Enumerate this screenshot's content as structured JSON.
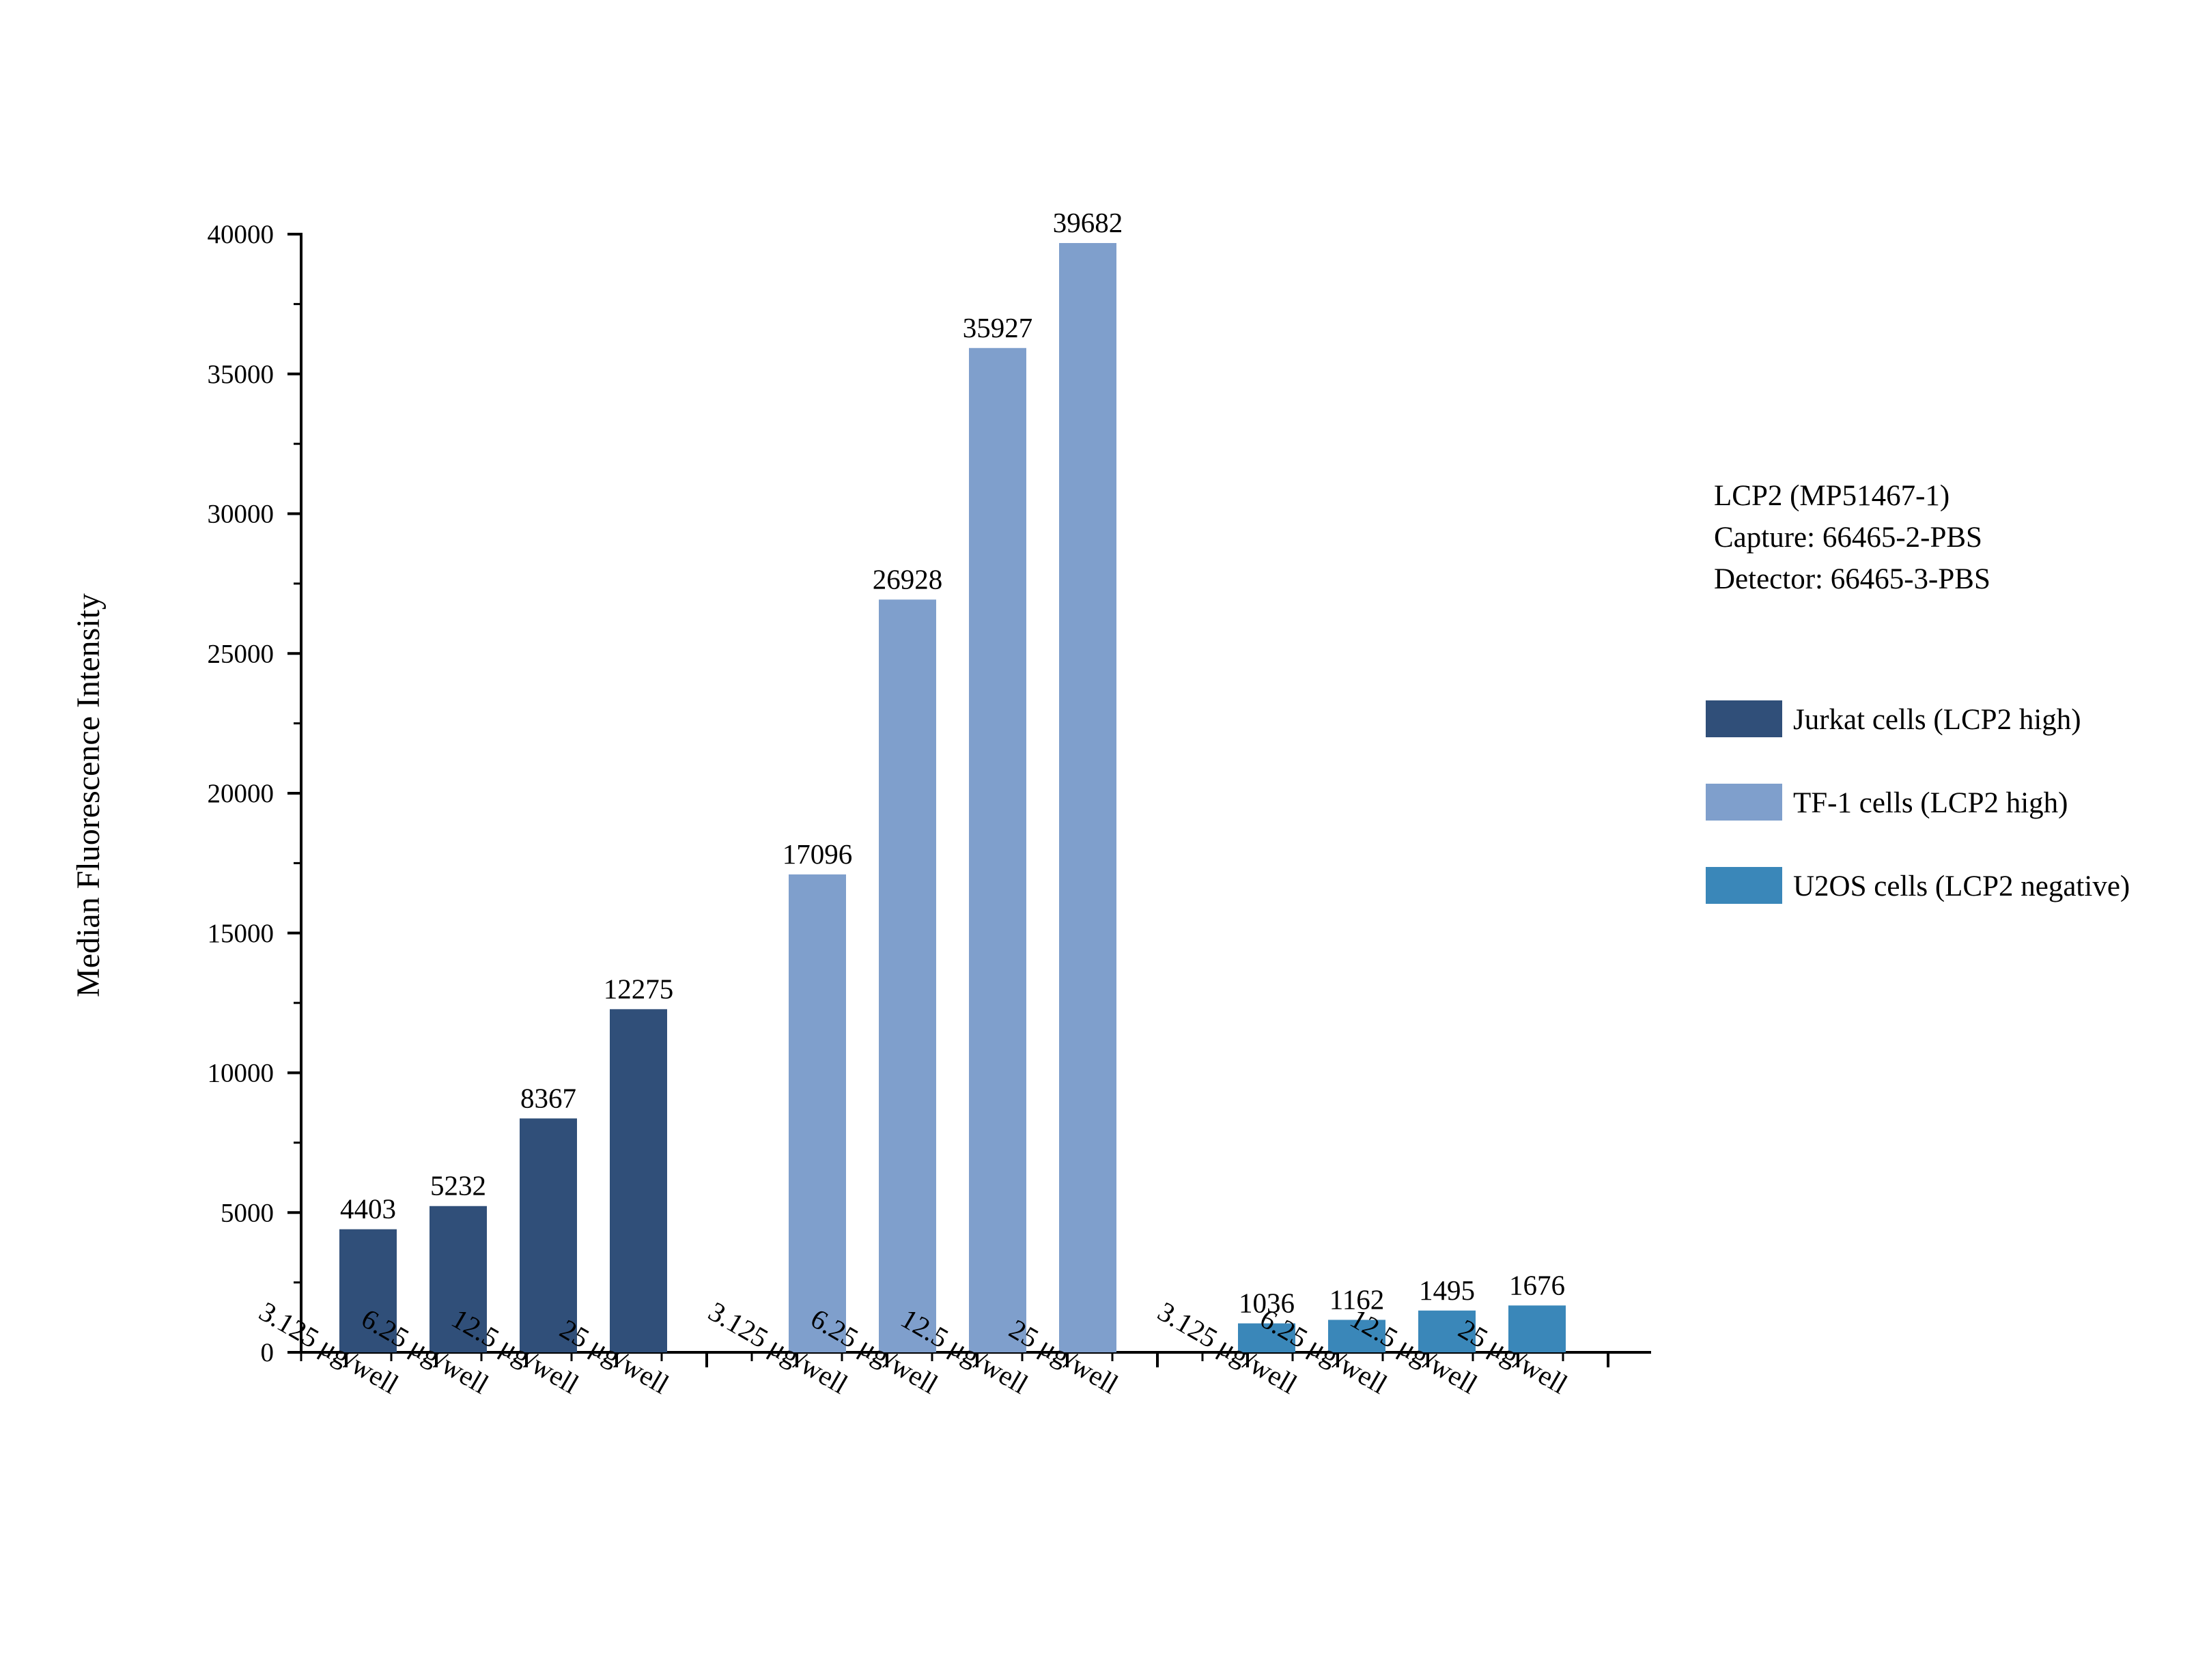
{
  "chart_data": {
    "type": "bar",
    "ylabel": "Median Fluorescence Intensity",
    "ylim": [
      0,
      40000
    ],
    "yticks": [
      0,
      5000,
      10000,
      15000,
      20000,
      25000,
      30000,
      35000,
      40000
    ],
    "grid": false,
    "legend_position": "right",
    "categories": [
      "3.125 μg/well",
      "6.25 μg/well",
      "12.5 μg/well",
      "25 μg/well"
    ],
    "series": [
      {
        "name": "Jurkat cells (LCP2 high)",
        "color": "#304f79",
        "values": [
          4403,
          5232,
          8367,
          12275
        ]
      },
      {
        "name": "TF-1 cells (LCP2 high)",
        "color": "#7f9fcc",
        "values": [
          17096,
          26928,
          35927,
          39682
        ]
      },
      {
        "name": "U2OS cells (LCP2 negative)",
        "color": "#3a87b9",
        "values": [
          1036,
          1162,
          1495,
          1676
        ]
      }
    ],
    "annotations": [
      "LCP2 (MP51467-1)",
      "Capture: 66465-2-PBS",
      "Detector: 66465-3-PBS"
    ]
  }
}
